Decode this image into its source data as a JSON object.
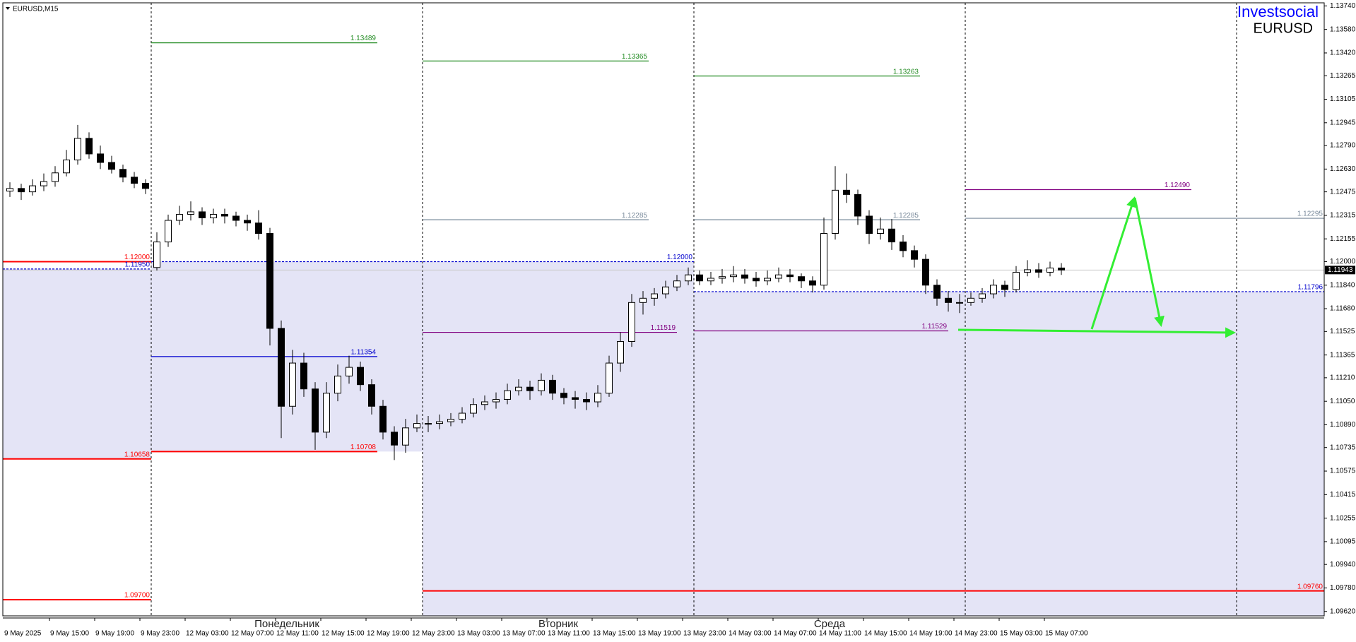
{
  "chart_data": {
    "type": "candlestick",
    "symbol_label": "EURUSD,M15",
    "brand": "Investsocial",
    "symbol": "EURUSD",
    "up_color": "#ffffff",
    "down_color": "#000000",
    "zone_color": "#e4e4f6",
    "ylim": [
      1.0959,
      1.13761
    ],
    "yticks": [
      {
        "value": 1.1374,
        "label": "1.13740"
      },
      {
        "value": 1.1358,
        "label": "1.13580"
      },
      {
        "value": 1.1342,
        "label": "1.13420"
      },
      {
        "value": 1.13265,
        "label": "1.13265"
      },
      {
        "value": 1.13105,
        "label": "1.13105"
      },
      {
        "value": 1.12945,
        "label": "1.12945"
      },
      {
        "value": 1.1279,
        "label": "1.12790"
      },
      {
        "value": 1.1263,
        "label": "1.12630"
      },
      {
        "value": 1.12475,
        "label": "1.12475"
      },
      {
        "value": 1.12315,
        "label": "1.12315"
      },
      {
        "value": 1.12155,
        "label": "1.12155"
      },
      {
        "value": 1.12,
        "label": "1.12000"
      },
      {
        "value": 1.1184,
        "label": "1.11840"
      },
      {
        "value": 1.1168,
        "label": "1.11680"
      },
      {
        "value": 1.11525,
        "label": "1.11525"
      },
      {
        "value": 1.11365,
        "label": "1.11365"
      },
      {
        "value": 1.1121,
        "label": "1.11210"
      },
      {
        "value": 1.1105,
        "label": "1.11050"
      },
      {
        "value": 1.1089,
        "label": "1.10890"
      },
      {
        "value": 1.10735,
        "label": "1.10735"
      },
      {
        "value": 1.10575,
        "label": "1.10575"
      },
      {
        "value": 1.10415,
        "label": "1.10415"
      },
      {
        "value": 1.10255,
        "label": "1.10255"
      },
      {
        "value": 1.10095,
        "label": "1.10095"
      },
      {
        "value": 1.0994,
        "label": "1.09940"
      },
      {
        "value": 1.0978,
        "label": "1.09780"
      },
      {
        "value": 1.0962,
        "label": "1.09620"
      }
    ],
    "current_price": {
      "value": 1.11943,
      "label": "1.11943"
    },
    "time_labels": [
      "9 May 2025",
      "9 May 15:00",
      "9 May 19:00",
      "9 May 23:00",
      "12 May 03:00",
      "12 May 07:00",
      "12 May 11:00",
      "12 May 15:00",
      "12 May 19:00",
      "12 May 23:00",
      "13 May 03:00",
      "13 May 07:00",
      "13 May 11:00",
      "13 May 15:00",
      "13 May 19:00",
      "13 May 23:00",
      "14 May 03:00",
      "14 May 07:00",
      "14 May 11:00",
      "14 May 15:00",
      "14 May 19:00",
      "14 May 23:00",
      "15 May 03:00",
      "15 May 07:00"
    ],
    "days": [
      {
        "name": null,
        "zone": [
          1.1195,
          1.10658
        ],
        "levels": [
          {
            "value": 1.12,
            "label": "1.12000",
            "color": "#ff0000",
            "span_hours": 24
          },
          {
            "value": 1.1195,
            "label": "1.11950",
            "color": "#0000cd",
            "dashed": true,
            "span_hours": 24
          },
          {
            "value": 1.10658,
            "label": "1.10658",
            "color": "#ff0000",
            "span_hours": 24
          },
          {
            "value": 1.097,
            "label": "1.09700",
            "color": "#ff0000",
            "span_hours": 24
          }
        ],
        "candles": [
          [
            1.1248,
            1.1254,
            1.1244,
            1.12498
          ],
          [
            1.12498,
            1.1253,
            1.1242,
            1.12475
          ],
          [
            1.12475,
            1.1256,
            1.1245,
            1.12516
          ],
          [
            1.12516,
            1.126,
            1.1248,
            1.12545
          ],
          [
            1.12545,
            1.1265,
            1.1251,
            1.12604
          ],
          [
            1.12604,
            1.1276,
            1.1258,
            1.12692
          ],
          [
            1.12692,
            1.1293,
            1.1266,
            1.12839
          ],
          [
            1.12839,
            1.1288,
            1.127,
            1.12733
          ],
          [
            1.12733,
            1.1279,
            1.1263,
            1.12675
          ],
          [
            1.12675,
            1.1272,
            1.126,
            1.12628
          ],
          [
            1.12628,
            1.1266,
            1.1254,
            1.12575
          ],
          [
            1.12575,
            1.1261,
            1.125,
            1.12533
          ],
          [
            1.12533,
            1.1256,
            1.1246,
            1.12498
          ]
        ]
      },
      {
        "name": "Понедельник",
        "zone": [
          1.12,
          1.10708
        ],
        "levels": [
          {
            "value": 1.13489,
            "label": "1.13489",
            "color": "#228b22",
            "span_hours": 20
          },
          {
            "value": 1.12,
            "label": "1.12000",
            "color": "#0000cd",
            "dashed": true,
            "span_hours": 48
          },
          {
            "value": 1.11354,
            "label": "1.11354",
            "color": "#0000cd",
            "span_hours": 20
          },
          {
            "value": 1.10708,
            "label": "1.10708",
            "color": "#ff0000",
            "span_hours": 20
          }
        ],
        "candles": [
          [
            1.1196,
            1.122,
            1.1194,
            1.12134
          ],
          [
            1.12134,
            1.1232,
            1.121,
            1.12281
          ],
          [
            1.12281,
            1.1238,
            1.1225,
            1.12322
          ],
          [
            1.12322,
            1.1241,
            1.1228,
            1.12339
          ],
          [
            1.12339,
            1.1237,
            1.1225,
            1.12298
          ],
          [
            1.12298,
            1.1236,
            1.1226,
            1.12322
          ],
          [
            1.12322,
            1.1236,
            1.1226,
            1.1231
          ],
          [
            1.1231,
            1.1234,
            1.1224,
            1.12281
          ],
          [
            1.12281,
            1.1232,
            1.1221,
            1.12263
          ],
          [
            1.12263,
            1.1235,
            1.1215,
            1.12192
          ],
          [
            1.12192,
            1.1223,
            1.1143,
            1.11546
          ],
          [
            1.11546,
            1.116,
            1.108,
            1.11016
          ],
          [
            1.11016,
            1.114,
            1.1096,
            1.1131
          ],
          [
            1.1131,
            1.1138,
            1.1108,
            1.11134
          ],
          [
            1.11134,
            1.1118,
            1.1072,
            1.1084
          ],
          [
            1.1084,
            1.1118,
            1.108,
            1.11105
          ],
          [
            1.11105,
            1.113,
            1.1105,
            1.11222
          ],
          [
            1.11222,
            1.1136,
            1.1117,
            1.11281
          ],
          [
            1.11281,
            1.1132,
            1.1112,
            1.11163
          ],
          [
            1.11163,
            1.112,
            1.1096,
            1.11016
          ],
          [
            1.11016,
            1.1106,
            1.1079,
            1.1084
          ],
          [
            1.1084,
            1.1088,
            1.1065,
            1.10752
          ],
          [
            1.10752,
            1.1093,
            1.107,
            1.10869
          ],
          [
            1.10869,
            1.1096,
            1.1084,
            1.10899
          ]
        ]
      },
      {
        "name": "Вторник",
        "zone": [
          1.12,
          null
        ],
        "levels": [
          {
            "value": 1.13365,
            "label": "1.13365",
            "color": "#228b22",
            "span_hours": 20
          },
          {
            "value": 1.12285,
            "label": "1.12285",
            "color": "#778899",
            "span_hours": 20
          },
          {
            "value": 1.11519,
            "label": "1.11519",
            "color": "#800080",
            "span_hours": 22.5
          },
          {
            "value": 1.0976,
            "label": "1.09760",
            "color": "#ff0000",
            "span_hours": 80
          }
        ],
        "candles": [
          [
            1.10899,
            1.1095,
            1.1084,
            1.10899
          ],
          [
            1.10899,
            1.1096,
            1.1086,
            1.10911
          ],
          [
            1.10911,
            1.1097,
            1.1088,
            1.10928
          ],
          [
            1.10928,
            1.1101,
            1.109,
            1.10969
          ],
          [
            1.10969,
            1.1107,
            1.1094,
            1.11028
          ],
          [
            1.11028,
            1.1109,
            1.1099,
            1.11046
          ],
          [
            1.11046,
            1.1111,
            1.11,
            1.11063
          ],
          [
            1.11063,
            1.1117,
            1.1103,
            1.11122
          ],
          [
            1.11122,
            1.112,
            1.1109,
            1.11146
          ],
          [
            1.11146,
            1.1119,
            1.1106,
            1.11122
          ],
          [
            1.11122,
            1.1124,
            1.1109,
            1.11193
          ],
          [
            1.11193,
            1.1123,
            1.1106,
            1.11105
          ],
          [
            1.11105,
            1.1114,
            1.1103,
            1.11075
          ],
          [
            1.11075,
            1.1112,
            1.11,
            1.11063
          ],
          [
            1.11063,
            1.1111,
            1.1099,
            1.11046
          ],
          [
            1.11046,
            1.1116,
            1.1101,
            1.11105
          ],
          [
            1.11105,
            1.1136,
            1.1108,
            1.1131
          ],
          [
            1.1131,
            1.1152,
            1.1125,
            1.11457
          ],
          [
            1.11457,
            1.1178,
            1.1142,
            1.11722
          ],
          [
            1.11722,
            1.118,
            1.1164,
            1.11751
          ],
          [
            1.11751,
            1.1182,
            1.117,
            1.11781
          ],
          [
            1.11781,
            1.1187,
            1.1175,
            1.11828
          ],
          [
            1.11828,
            1.1191,
            1.118,
            1.11869
          ],
          [
            1.11869,
            1.1196,
            1.1184,
            1.1191
          ]
        ]
      },
      {
        "name": "Среда",
        "zone": [
          1.11796,
          null
        ],
        "levels": [
          {
            "value": 1.13263,
            "label": "1.13263",
            "color": "#228b22",
            "span_hours": 20
          },
          {
            "value": 1.12285,
            "label": "1.12285",
            "color": "#778899",
            "span_hours": 20
          },
          {
            "value": 1.11529,
            "label": "1.11529",
            "color": "#800080",
            "span_hours": 22.5
          },
          {
            "value": 1.11796,
            "label": "1.11796",
            "color": "#0000cd",
            "dashed": true,
            "span_hours": 56
          }
        ],
        "candles": [
          [
            1.1191,
            1.1194,
            1.1184,
            1.11869
          ],
          [
            1.11869,
            1.1193,
            1.1184,
            1.11887
          ],
          [
            1.11887,
            1.1195,
            1.1185,
            1.11898
          ],
          [
            1.11898,
            1.1197,
            1.1186,
            1.1191
          ],
          [
            1.1191,
            1.1195,
            1.1185,
            1.11887
          ],
          [
            1.11887,
            1.1193,
            1.1183,
            1.11869
          ],
          [
            1.11869,
            1.1194,
            1.1184,
            1.11887
          ],
          [
            1.11887,
            1.1196,
            1.1186,
            1.1191
          ],
          [
            1.1191,
            1.1195,
            1.1186,
            1.11898
          ],
          [
            1.11898,
            1.1192,
            1.1182,
            1.11869
          ],
          [
            1.11869,
            1.119,
            1.1179,
            1.1184
          ],
          [
            1.1184,
            1.123,
            1.1181,
            1.12192
          ],
          [
            1.12192,
            1.1265,
            1.1215,
            1.12486
          ],
          [
            1.12486,
            1.126,
            1.124,
            1.12457
          ],
          [
            1.12457,
            1.1249,
            1.1225,
            1.1231
          ],
          [
            1.1231,
            1.1235,
            1.1212,
            1.12192
          ],
          [
            1.12192,
            1.123,
            1.1215,
            1.12222
          ],
          [
            1.12222,
            1.1229,
            1.1208,
            1.12134
          ],
          [
            1.12134,
            1.1218,
            1.1203,
            1.12075
          ],
          [
            1.12075,
            1.1211,
            1.1196,
            1.12016
          ],
          [
            1.12016,
            1.1205,
            1.1178,
            1.1184
          ],
          [
            1.1184,
            1.1188,
            1.117,
            1.11751
          ],
          [
            1.11751,
            1.118,
            1.1166,
            1.11722
          ],
          [
            1.11722,
            1.1178,
            1.1165,
            1.11722
          ]
        ]
      },
      {
        "name": null,
        "zone": [
          1.11796,
          null
        ],
        "levels": [
          {
            "value": 1.1249,
            "label": "1.12490",
            "color": "#800080",
            "span_hours": 20
          },
          {
            "value": 1.12295,
            "label": "1.12295",
            "color": "#778899",
            "span_hours": 32
          }
        ],
        "candles": [
          [
            1.11722,
            1.1179,
            1.117,
            1.11751
          ],
          [
            1.11751,
            1.1182,
            1.1172,
            1.11781
          ],
          [
            1.11781,
            1.1188,
            1.1175,
            1.1184
          ],
          [
            1.1184,
            1.1187,
            1.1176,
            1.1181
          ],
          [
            1.1181,
            1.1197,
            1.1179,
            1.11928
          ],
          [
            1.11928,
            1.1201,
            1.119,
            1.11945
          ],
          [
            1.11945,
            1.1199,
            1.1189,
            1.11928
          ],
          [
            1.11928,
            1.12,
            1.119,
            1.11957
          ],
          [
            1.11957,
            1.1199,
            1.1191,
            1.11943
          ]
        ]
      }
    ]
  }
}
